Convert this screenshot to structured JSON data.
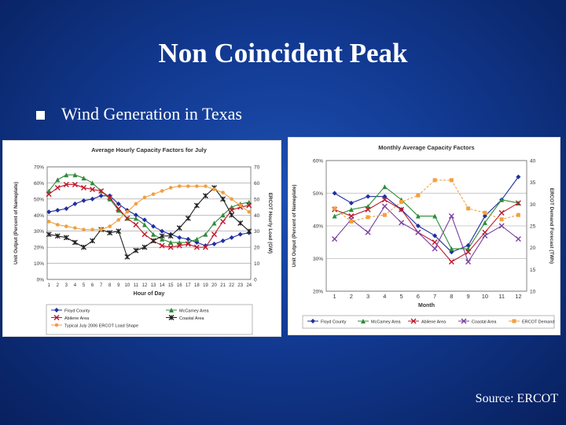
{
  "slide": {
    "title": "Non Coincident Peak",
    "bullet": "Wind Generation in Texas",
    "source": "Source: ERCOT"
  },
  "colors": {
    "floyd": "#1f2fa0",
    "mccamey": "#2e8b3a",
    "abilene": "#c0182a",
    "coastal": "#202020",
    "demand": "#f0a040",
    "other": "#7a3fa0"
  },
  "chart_data": [
    {
      "type": "line",
      "title": "Average Hourly Capacity Factors for July",
      "xlabel": "Hour of Day",
      "ylabel": "Unit Output (Percent of Nameplate)",
      "y2label": "ERCOT Hourly Load (GW)",
      "x": [
        1,
        2,
        3,
        4,
        5,
        6,
        7,
        8,
        9,
        10,
        11,
        12,
        13,
        14,
        15,
        16,
        17,
        18,
        19,
        20,
        21,
        22,
        23,
        24
      ],
      "y_ticks": [
        "0%",
        "10%",
        "20%",
        "30%",
        "40%",
        "50%",
        "60%",
        "70%"
      ],
      "y2_ticks": [
        "0",
        "10",
        "20",
        "30",
        "40",
        "50",
        "60",
        "70"
      ],
      "ylim": [
        0,
        70
      ],
      "y2lim": [
        0,
        70
      ],
      "series": [
        {
          "name": "Floyd County",
          "axis": "left",
          "color": "#1f2fa0",
          "marker": "diamond",
          "values": [
            42,
            43,
            44,
            47,
            49,
            50,
            52,
            52,
            47,
            43,
            40,
            37,
            33,
            30,
            28,
            26,
            25,
            23,
            21,
            22,
            24,
            26,
            28,
            29
          ]
        },
        {
          "name": "McCamey Area",
          "axis": "left",
          "color": "#2e8b3a",
          "marker": "triangle",
          "values": [
            55,
            62,
            65,
            65,
            63,
            60,
            55,
            50,
            43,
            38,
            38,
            34,
            28,
            25,
            23,
            23,
            23,
            25,
            28,
            35,
            40,
            45,
            47,
            48
          ]
        },
        {
          "name": "Abilene Area",
          "axis": "left",
          "color": "#c0182a",
          "marker": "x",
          "values": [
            53,
            57,
            59,
            59,
            57,
            56,
            55,
            51,
            44,
            38,
            34,
            28,
            24,
            21,
            20,
            21,
            22,
            20,
            20,
            28,
            36,
            43,
            45,
            46
          ]
        },
        {
          "name": "Coastal Area",
          "axis": "left",
          "color": "#202020",
          "marker": "star",
          "values": [
            28,
            27,
            26,
            23,
            20,
            24,
            31,
            29,
            30,
            14,
            18,
            20,
            24,
            27,
            27,
            32,
            38,
            46,
            52,
            57,
            50,
            40,
            35,
            30
          ]
        },
        {
          "name": "Typical July 2006 ERCOT Load Shape",
          "axis": "right",
          "color": "#f0a040",
          "marker": "dot",
          "values": [
            36,
            34,
            33,
            32,
            31,
            31,
            31,
            33,
            37,
            42,
            47,
            51,
            53,
            55,
            57,
            58,
            58,
            58,
            58,
            56,
            54,
            50,
            46,
            42
          ]
        }
      ],
      "legend": "bottom"
    },
    {
      "type": "line",
      "title": "Monthly Average Capacity Factors",
      "xlabel": "Month",
      "ylabel": "Unit Output (Percent of Nameplate)",
      "y2label": "ERCOT Demand Forecast (TWh)",
      "x": [
        1,
        2,
        3,
        4,
        5,
        6,
        7,
        8,
        9,
        10,
        11,
        12
      ],
      "y_ticks": [
        "20%",
        "30%",
        "40%",
        "50%",
        "60%"
      ],
      "y2_ticks": [
        "10",
        "15",
        "20",
        "25",
        "30",
        "35",
        "40"
      ],
      "ylim": [
        20,
        60
      ],
      "y2lim": [
        10,
        40
      ],
      "series": [
        {
          "name": "Floyd County",
          "axis": "left",
          "color": "#1f2fa0",
          "marker": "diamond",
          "values": [
            50,
            47,
            49,
            49,
            45,
            40,
            37,
            32,
            34,
            43,
            48,
            55
          ]
        },
        {
          "name": "McCamey Area",
          "axis": "left",
          "color": "#2e8b3a",
          "marker": "triangle",
          "values": [
            43,
            45,
            46,
            52,
            48,
            43,
            43,
            33,
            33,
            41,
            48,
            47
          ]
        },
        {
          "name": "Abilene Area",
          "axis": "left",
          "color": "#c0182a",
          "marker": "x",
          "values": [
            45,
            43,
            45,
            48,
            45,
            38,
            35,
            29,
            32,
            38,
            44,
            47
          ]
        },
        {
          "name": "Coastal Area",
          "axis": "left",
          "color": "#7a3fa0",
          "marker": "x",
          "values": [
            36,
            42,
            38,
            46,
            41,
            38,
            33,
            43,
            29,
            37,
            40,
            36
          ]
        },
        {
          "name": "ERCOT Demand",
          "axis": "right",
          "color": "#f0a040",
          "marker": "square",
          "values": [
            29,
            26,
            27,
            27.5,
            30.5,
            32,
            35.5,
            35.5,
            29,
            28,
            26.5,
            27.5
          ]
        }
      ],
      "legend": "bottom"
    }
  ]
}
